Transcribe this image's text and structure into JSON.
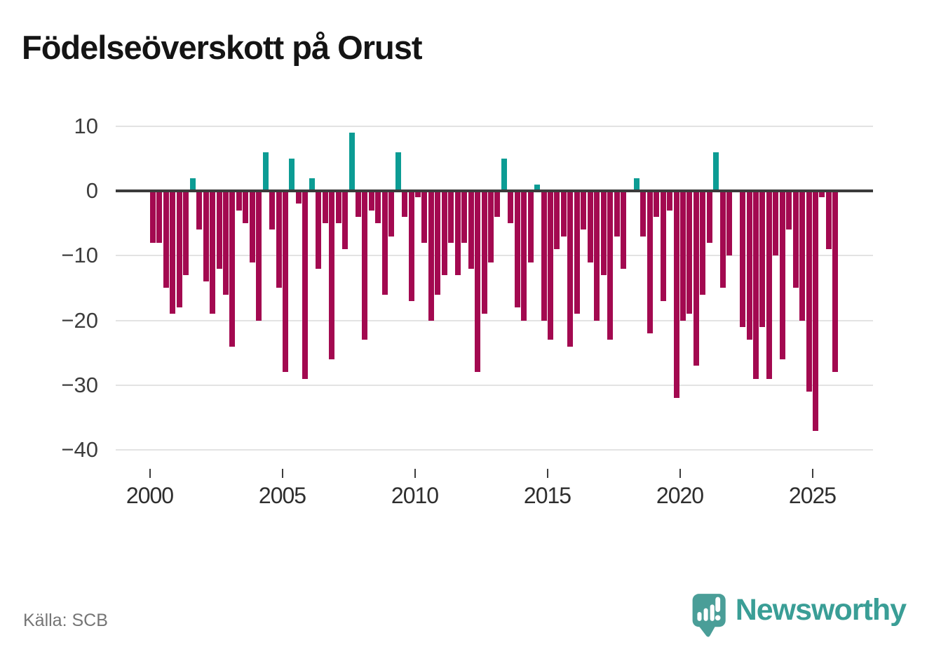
{
  "title": "Födelseöverskott på Orust",
  "source": "Källa: SCB",
  "branding": {
    "name": "Newsworthy",
    "logo_icon": "speech-bubble-bar-chart-icon"
  },
  "colors": {
    "negative_bar": "#a30950",
    "positive_bar": "#0c9c94",
    "zero_line": "#3b3b3b",
    "grid_line": "#e3e3e3",
    "axis_text": "#3d3d3d",
    "brand_teal": "#3a9e96",
    "title_text": "#141414",
    "source_text": "#757575"
  },
  "chart_data": {
    "type": "bar",
    "title": "Födelseöverskott på Orust",
    "frequency": "quarterly",
    "start_period": "2000 Q1",
    "end_period": "2025 Q4",
    "ylim": [
      -40,
      10
    ],
    "grid": true,
    "legend_position": "none",
    "y_ticks": [
      10,
      0,
      -10,
      -20,
      -30,
      -40
    ],
    "y_tick_labels": [
      "10",
      "0",
      "−10",
      "−20",
      "−30",
      "−40"
    ],
    "x_tick_years": [
      2000,
      2005,
      2010,
      2015,
      2020,
      2025
    ],
    "x_tick_labels": [
      "2000",
      "2005",
      "2010",
      "2015",
      "2020",
      "2025"
    ],
    "values": [
      -8,
      -8,
      -15,
      -19,
      -18,
      -13,
      2,
      -6,
      -14,
      -19,
      -12,
      -16,
      -24,
      -3,
      -5,
      -11,
      -20,
      6,
      -6,
      -15,
      -28,
      5,
      -2,
      -29,
      2,
      -12,
      -5,
      -26,
      -5,
      -9,
      9,
      -4,
      -23,
      -3,
      -5,
      -16,
      -7,
      6,
      -4,
      -17,
      -1,
      -8,
      -20,
      -16,
      -13,
      -8,
      -13,
      -8,
      -12,
      -28,
      -19,
      -11,
      -4,
      5,
      -5,
      -18,
      -20,
      -11,
      1,
      -20,
      -23,
      -9,
      -7,
      -24,
      -19,
      -6,
      -11,
      -20,
      -13,
      -23,
      -7,
      -12,
      0,
      2,
      -7,
      -22,
      -4,
      -17,
      -3,
      -32,
      -20,
      -19,
      -27,
      -16,
      -8,
      6,
      -15,
      -10,
      0,
      -21,
      -23,
      -29,
      -21,
      -29,
      -10,
      -26,
      -6,
      -15,
      -20,
      -31,
      -37,
      -1,
      -9,
      -28
    ]
  }
}
